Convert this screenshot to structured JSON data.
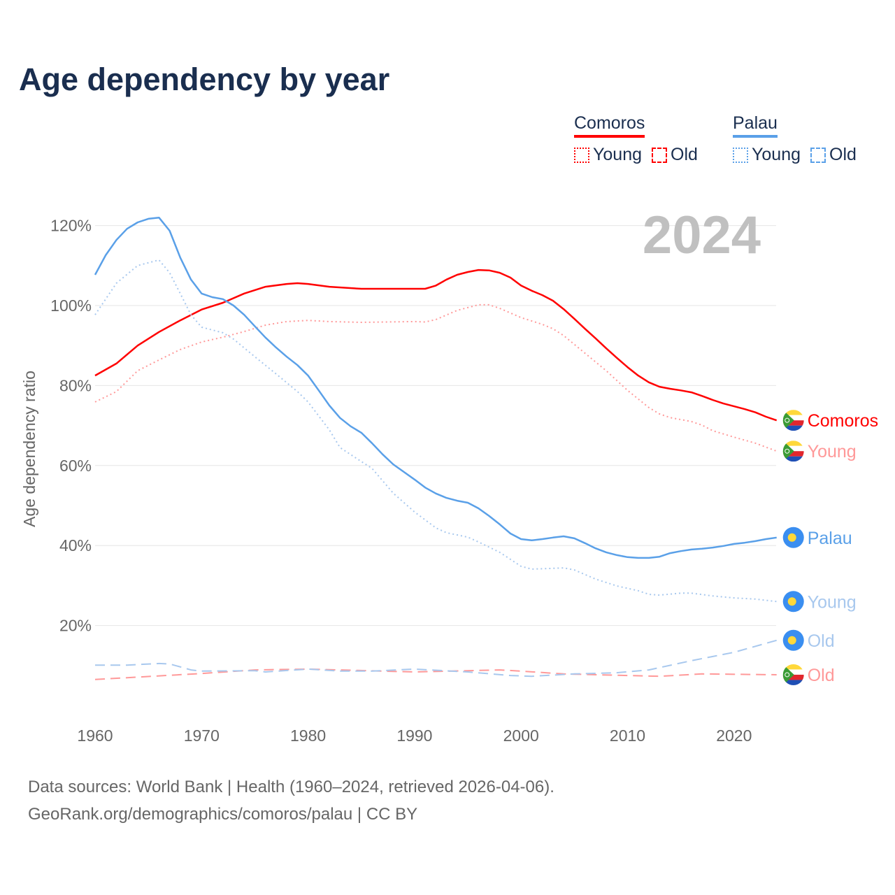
{
  "title": "Age dependency by year",
  "legend": [
    {
      "country": "Comoros",
      "color": "#ff0000",
      "items": [
        "Young",
        "Old"
      ]
    },
    {
      "country": "Palau",
      "color": "#5aa0e8",
      "items": [
        "Young",
        "Old"
      ]
    }
  ],
  "footer": {
    "line1": "Data sources: World Bank | Health (1960–2024, retrieved 2026-04-06).",
    "line2": "GeoRank.org/demographics/comoros/palau | CC BY"
  },
  "chart_data": {
    "type": "line",
    "title": "Age dependency by year",
    "ylabel": "Age dependency ratio",
    "xlabel": "",
    "year_label": "2024",
    "xlim": [
      1960,
      2024
    ],
    "ylim": [
      0,
      125
    ],
    "xticks": [
      1960,
      1970,
      1980,
      1990,
      2000,
      2010,
      2020
    ],
    "yticks": [
      20,
      40,
      60,
      80,
      100,
      120
    ],
    "ytick_labels": [
      "20%",
      "40%",
      "60%",
      "80%",
      "100%",
      "120%"
    ],
    "grid": true,
    "legend_position": "top-right",
    "series": [
      {
        "name": "Comoros",
        "end_label": "Comoros",
        "flag": "comoros",
        "color": "#ff0000",
        "label_color": "#ff0000",
        "style": "solid",
        "x": [
          1960,
          1962,
          1964,
          1966,
          1968,
          1970,
          1972,
          1974,
          1976,
          1978,
          1979,
          1980,
          1982,
          1985,
          1990,
          1991,
          1992,
          1993,
          1994,
          1995,
          1996,
          1997,
          1998,
          1999,
          2000,
          2001,
          2002,
          2003,
          2004,
          2005,
          2006,
          2007,
          2008,
          2009,
          2010,
          2011,
          2012,
          2013,
          2014,
          2015,
          2016,
          2017,
          2018,
          2019,
          2020,
          2021,
          2022,
          2023,
          2024
        ],
        "y": [
          82.5,
          85.5,
          90,
          93.4,
          96.3,
          99,
          100.7,
          103,
          104.7,
          105.4,
          105.6,
          105.4,
          104.7,
          104.2,
          104.2,
          104.2,
          105,
          106.5,
          107.7,
          108.4,
          108.9,
          108.8,
          108.2,
          107,
          105,
          103.7,
          102.6,
          101.2,
          99.1,
          96.7,
          94.2,
          91.8,
          89.3,
          86.9,
          84.6,
          82.5,
          80.8,
          79.7,
          79.2,
          78.8,
          78.3,
          77.4,
          76.4,
          75.5,
          74.8,
          74.1,
          73.3,
          72.2,
          71.3
        ]
      },
      {
        "name": "Comoros Young",
        "end_label": "Young",
        "flag": "comoros",
        "color": "#ff9999",
        "label_color": "#ff9999",
        "style": "dotted",
        "x": [
          1960,
          1962,
          1964,
          1966,
          1968,
          1970,
          1972,
          1974,
          1976,
          1978,
          1980,
          1982,
          1985,
          1990,
          1991,
          1992,
          1994,
          1996,
          1997,
          1998,
          2000,
          2002,
          2003,
          2004,
          2006,
          2008,
          2010,
          2012,
          2013,
          2014,
          2016,
          2017,
          2018,
          2020,
          2022,
          2024
        ],
        "y": [
          75.9,
          78.5,
          83.7,
          86.4,
          89,
          90.9,
          92.1,
          93.5,
          95.1,
          96,
          96.3,
          96,
          95.8,
          96,
          95.9,
          96.5,
          98.8,
          100.2,
          100.2,
          99.3,
          97,
          95.3,
          94.2,
          92.5,
          88.1,
          83.7,
          78.8,
          74.5,
          72.9,
          72,
          71,
          70.1,
          68.7,
          67.1,
          65.6,
          63.6
        ]
      },
      {
        "name": "Comoros Old",
        "end_label": "Old",
        "flag": "comoros",
        "color": "#ff9999",
        "label_color": "#ff9999",
        "style": "dashed",
        "x": [
          1960,
          1970,
          1975,
          1980,
          1990,
          1995,
          1998,
          2000,
          2004,
          2010,
          2013,
          2017,
          2024
        ],
        "y": [
          6.5,
          8,
          8.9,
          9.1,
          8.4,
          8.7,
          8.9,
          8.6,
          7.9,
          7.5,
          7.3,
          7.9,
          7.7
        ]
      },
      {
        "name": "Palau",
        "end_label": "Palau",
        "flag": "palau",
        "color": "#5aa0e8",
        "label_color": "#5aa0e8",
        "style": "solid",
        "x": [
          1960,
          1961,
          1962,
          1963,
          1964,
          1965,
          1966,
          1967,
          1968,
          1969,
          1970,
          1971,
          1972,
          1973,
          1974,
          1975,
          1976,
          1977,
          1978,
          1979,
          1980,
          1981,
          1982,
          1983,
          1984,
          1985,
          1986,
          1987,
          1988,
          1989,
          1990,
          1991,
          1992,
          1993,
          1994,
          1995,
          1996,
          1997,
          1998,
          1999,
          2000,
          2001,
          2002,
          2003,
          2004,
          2005,
          2006,
          2007,
          2008,
          2009,
          2010,
          2011,
          2012,
          2013,
          2014,
          2015,
          2016,
          2017,
          2018,
          2019,
          2020,
          2021,
          2022,
          2023,
          2024
        ],
        "y": [
          107.7,
          112.6,
          116.4,
          119.2,
          120.8,
          121.7,
          122,
          118.7,
          112,
          106.5,
          103,
          102.1,
          101.6,
          100,
          97.7,
          94.8,
          92,
          89.5,
          87.2,
          85.1,
          82.5,
          78.8,
          75,
          71.9,
          69.8,
          68.2,
          65.6,
          62.8,
          60.3,
          58.4,
          56.5,
          54.5,
          53,
          51.9,
          51.2,
          50.7,
          49.3,
          47.4,
          45.3,
          43,
          41.6,
          41.3,
          41.6,
          42,
          42.3,
          41.8,
          40.6,
          39.3,
          38.3,
          37.6,
          37.1,
          36.9,
          36.9,
          37.2,
          38.1,
          38.6,
          39,
          39.2,
          39.5,
          39.9,
          40.4,
          40.7,
          41.1,
          41.6,
          42
        ]
      },
      {
        "name": "Palau Young",
        "end_label": "Young",
        "flag": "palau",
        "color": "#a8c8ee",
        "label_color": "#a8c8ee",
        "style": "dotted",
        "x": [
          1960,
          1962,
          1964,
          1966,
          1967,
          1968,
          1969,
          1970,
          1972,
          1973,
          1975,
          1977,
          1979,
          1980,
          1982,
          1983,
          1985,
          1986,
          1988,
          1990,
          1992,
          1993,
          1995,
          1996,
          1998,
          2000,
          2001,
          2002,
          2004,
          2005,
          2007,
          2009,
          2011,
          2012,
          2013,
          2015,
          2016,
          2018,
          2020,
          2022,
          2024
        ],
        "y": [
          97.7,
          105.6,
          110,
          111.4,
          108.2,
          103,
          97.7,
          94.6,
          93.2,
          91.6,
          87.2,
          82.9,
          78.5,
          75.9,
          68.9,
          64.5,
          61,
          59.3,
          53.1,
          48.4,
          44.4,
          43.2,
          42.1,
          40.9,
          38.3,
          34.8,
          34.1,
          34.2,
          34.4,
          33.9,
          31.6,
          29.9,
          28.7,
          27.8,
          27.6,
          28.1,
          28.1,
          27.4,
          26.9,
          26.6,
          26
        ]
      },
      {
        "name": "Palau Old",
        "end_label": "Old",
        "flag": "palau",
        "color": "#a8c8ee",
        "label_color": "#a8c8ee",
        "style": "dashed",
        "x": [
          1960,
          1963,
          1966,
          1967,
          1969,
          1970,
          1975,
          1976,
          1980,
          1983,
          1986,
          1990,
          1995,
          1999,
          2001,
          2005,
          2009,
          2012,
          2016,
          2020,
          2024
        ],
        "y": [
          10.1,
          10.1,
          10.5,
          10.4,
          8.9,
          8.6,
          8.7,
          8.4,
          9.1,
          8.6,
          8.6,
          9.1,
          8.4,
          7.5,
          7.3,
          7.9,
          8.2,
          8.9,
          11.2,
          13.3,
          16.3
        ]
      }
    ]
  }
}
